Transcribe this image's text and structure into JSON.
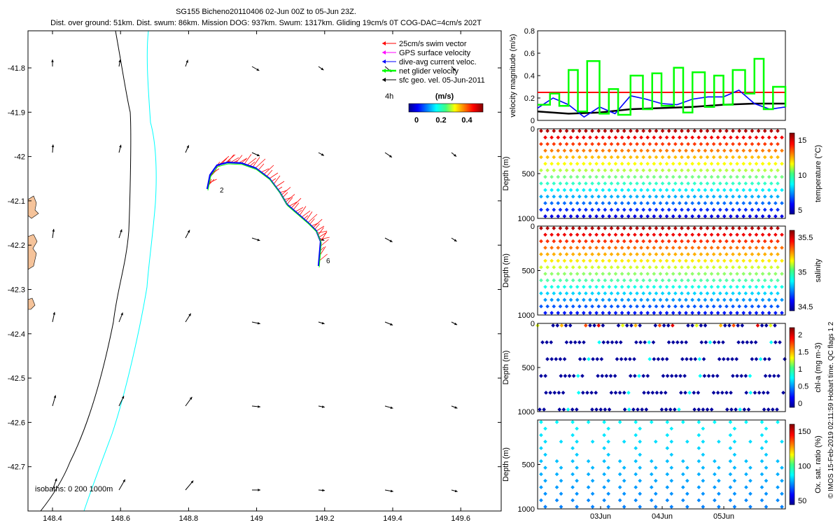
{
  "title_line1": "SG155 Bicheno20110406 02-Jun 00Z to 05-Jun 23Z.",
  "title_line2": "Dist. over ground: 51km. Dist. swum: 86km. Mission DOG: 937km. Swum: 1317km. Gliding 19cm/s 0T COG-DAC=4cm/s 202T",
  "side_credit": "© IMOS 15-Feb-2019 02:11:59 Hobart time. QC flags 1  2",
  "colors": {
    "swim": "#ff0000",
    "gps": "#ff00ff",
    "dac": "#0000ff",
    "net": "#00ff00",
    "geo": "#000000",
    "isobath_shallow": "#000000",
    "isobath_deep": "#00ffff",
    "land": "#f5c39a"
  },
  "map": {
    "legend": [
      {
        "label": "25cm/s swim vector",
        "color": "#ff0000"
      },
      {
        "label": "GPS surface velocity",
        "color": "#ff00ff"
      },
      {
        "label": "dive-avg current veloc.",
        "color": "#0000ff"
      },
      {
        "label": "net glider velocity",
        "color": "#00ff00"
      },
      {
        "label": "sfc geo. vel. 05-Jun-2011",
        "color": "#000000"
      }
    ],
    "time_step_label": "4h",
    "colorbar_label": "(m/s)",
    "colorbar_ticks": [
      "0",
      "0.2",
      "0.4"
    ],
    "isobath_label": "isobaths: 0   200  1000m",
    "xticks": [
      "148.4",
      "148.6",
      "148.8",
      "149",
      "149.2",
      "149.4",
      "149.6"
    ],
    "yticks": [
      "-41.8",
      "-41.9",
      "-42",
      "-42.1",
      "-42.2",
      "-42.3",
      "-42.4",
      "-42.5",
      "-42.6",
      "-42.7"
    ],
    "track_labels": [
      "2",
      "6"
    ]
  },
  "chart_data": [
    {
      "type": "line",
      "ylabel": "velocity magnitude (m/s)",
      "ylim": [
        0,
        0.8
      ],
      "yticks": [
        "0",
        "0.2",
        "0.4",
        "0.6",
        "0.8"
      ],
      "x_day_range": [
        1,
        5
      ],
      "threshold": 0.25,
      "series": [
        {
          "color": "#000000",
          "x": [
            1,
            1.5,
            2,
            2.5,
            3,
            3.5,
            4,
            4.5,
            5
          ],
          "values": [
            0.08,
            0.06,
            0.07,
            0.1,
            0.11,
            0.12,
            0.14,
            0.15,
            0.15
          ]
        },
        {
          "color": "#0000ff",
          "x": [
            1,
            1.25,
            1.5,
            1.75,
            2,
            2.25,
            2.5,
            2.75,
            3,
            3.25,
            3.5,
            3.75,
            4,
            4.25,
            4.5,
            4.75,
            5
          ],
          "values": [
            0.11,
            0.2,
            0.14,
            0.03,
            0.12,
            0.06,
            0.22,
            0.19,
            0.15,
            0.14,
            0.19,
            0.21,
            0.21,
            0.27,
            0.15,
            0.1,
            0.12
          ]
        },
        {
          "color": "#00ff00",
          "x": [
            1,
            1.2,
            1.35,
            1.5,
            1.65,
            1.8,
            2,
            2.15,
            2.3,
            2.5,
            2.7,
            2.85,
            3,
            3.2,
            3.35,
            3.5,
            3.7,
            3.85,
            4,
            4.15,
            4.35,
            4.5,
            4.65,
            4.8,
            5
          ],
          "values": [
            0.14,
            0.24,
            0.13,
            0.45,
            0.08,
            0.53,
            0.06,
            0.28,
            0.05,
            0.4,
            0.1,
            0.42,
            0.13,
            0.47,
            0.07,
            0.43,
            0.12,
            0.4,
            0.14,
            0.45,
            0.24,
            0.55,
            0.1,
            0.3,
            0.12
          ]
        }
      ]
    },
    {
      "type": "scatter",
      "ylabel": "Depth (m)",
      "ylim": [
        1000,
        0
      ],
      "yticks": [
        "0",
        "500",
        "1000"
      ],
      "colorbar_label": "temperature (°C)",
      "colorbar_ticks": [
        "5",
        "10",
        "15"
      ],
      "dives": 38,
      "surface_value": "warm"
    },
    {
      "type": "scatter",
      "ylabel": "Depth (m)",
      "ylim": [
        1000,
        0
      ],
      "yticks": [
        "0",
        "500",
        "1000"
      ],
      "colorbar_label": "salinity",
      "colorbar_ticks": [
        "34.5",
        "35",
        "35.5"
      ],
      "dives": 38
    },
    {
      "type": "scatter",
      "ylabel": "Depth (m)",
      "ylim": [
        1000,
        0
      ],
      "yticks": [
        "0",
        "500",
        "1000"
      ],
      "colorbar_label": "chl-a (mg m-3)",
      "colorbar_ticks": [
        "0",
        "0.5",
        "1",
        "1.5",
        "2"
      ],
      "dives": 38
    },
    {
      "type": "scatter",
      "ylabel": "Depth (m)",
      "ylim": [
        1000,
        0
      ],
      "yticks": [
        "500",
        "1000"
      ],
      "colorbar_label": "Ox. sat. ratio (%)",
      "colorbar_ticks": [
        "50",
        "100",
        "150"
      ],
      "xticks": [
        "03Jun",
        "04Jun",
        "05Jun"
      ],
      "dives": 16
    }
  ]
}
